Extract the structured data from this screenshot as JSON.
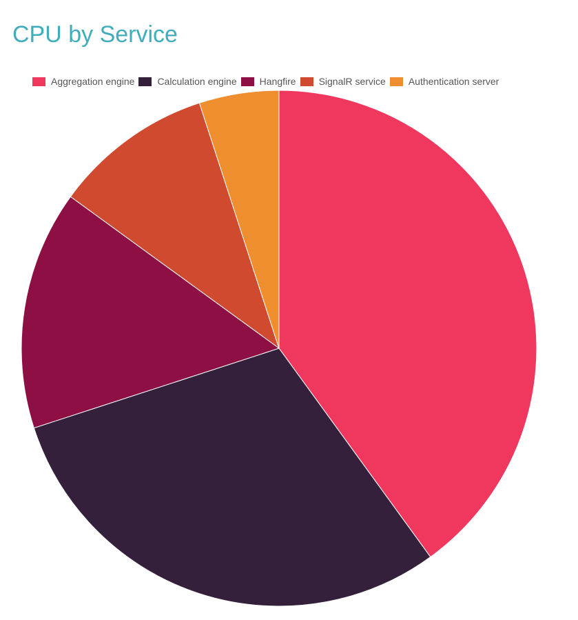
{
  "chart_data": {
    "type": "pie",
    "title": "CPU by Service",
    "legend_position": "top-left",
    "categories": [
      "Aggregation engine",
      "Calculation engine",
      "Hangfire",
      "SignalR service",
      "Authentication server"
    ],
    "values": [
      40,
      30,
      15,
      10,
      5
    ],
    "colors": [
      "#f0375d",
      "#35203b",
      "#8e0f44",
      "#d04a30",
      "#ee8e2f"
    ]
  },
  "theme": {
    "title_color": "#3fadbb",
    "slice_stroke": "#ffffff"
  }
}
